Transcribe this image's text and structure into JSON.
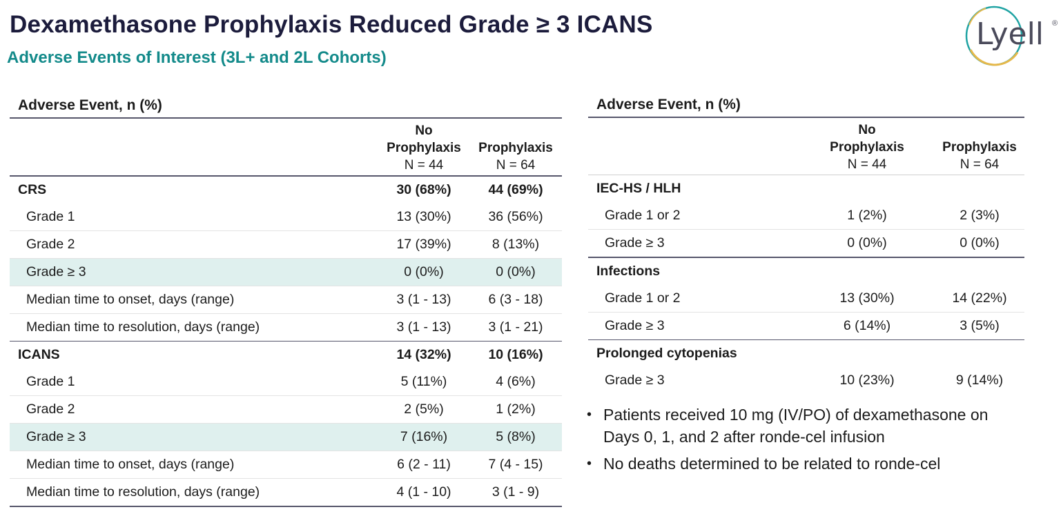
{
  "header": {
    "title": "Dexamethasone Prophylaxis Reduced Grade ≥ 3 ICANS",
    "subtitle": "Adverse Events of Interest (3L+ and 2L Cohorts)",
    "logo_text": "Lyell",
    "logo_mark": "®"
  },
  "left_table": {
    "title": "Adverse Event, n (%)",
    "col1": {
      "line1": "No",
      "line2": "Prophylaxis",
      "line3": "N = 44"
    },
    "col2": {
      "line2": "Prophylaxis",
      "line3": "N = 64"
    },
    "rows": [
      {
        "label": "CRS",
        "a": "30 (68%)",
        "b": "44 (69%)"
      },
      {
        "label": "Grade 1",
        "a": "13 (30%)",
        "b": "36 (56%)"
      },
      {
        "label": "Grade 2",
        "a": "17 (39%)",
        "b": "8 (13%)"
      },
      {
        "label": "Grade ≥ 3",
        "a": "0 (0%)",
        "b": "0 (0%)"
      },
      {
        "label": "Median time to onset, days (range)",
        "a": "3 (1 - 13)",
        "b": "6 (3 - 18)"
      },
      {
        "label": "Median time to resolution, days (range)",
        "a": "3 (1 - 13)",
        "b": "3 (1 - 21)"
      },
      {
        "label": "ICANS",
        "a": "14 (32%)",
        "b": "10 (16%)"
      },
      {
        "label": "Grade 1",
        "a": "5 (11%)",
        "b": "4 (6%)"
      },
      {
        "label": "Grade 2",
        "a": "2 (5%)",
        "b": "1 (2%)"
      },
      {
        "label": "Grade ≥ 3",
        "a": "7 (16%)",
        "b": "5 (8%)"
      },
      {
        "label": "Median time to onset, days (range)",
        "a": "6 (2 - 11)",
        "b": "7 (4 - 15)"
      },
      {
        "label": "Median time to resolution, days (range)",
        "a": "4 (1 - 10)",
        "b": "3 (1 - 9)"
      }
    ]
  },
  "right_table": {
    "title": "Adverse Event, n (%)",
    "col1": {
      "line1": "No",
      "line2": "Prophylaxis",
      "line3": "N = 44"
    },
    "col2": {
      "line2": "Prophylaxis",
      "line3": "N = 64"
    },
    "rows": [
      {
        "label": "IEC-HS / HLH"
      },
      {
        "label": "Grade 1 or 2",
        "a": "1 (2%)",
        "b": "2 (3%)"
      },
      {
        "label": "Grade ≥ 3",
        "a": "0 (0%)",
        "b": "0 (0%)"
      },
      {
        "label": "Infections"
      },
      {
        "label": "Grade 1 or 2",
        "a": "13 (30%)",
        "b": "14 (22%)"
      },
      {
        "label": "Grade ≥ 3",
        "a": "6 (14%)",
        "b": "3 (5%)"
      },
      {
        "label": "Prolonged cytopenias"
      },
      {
        "label": "Grade ≥ 3",
        "a": "10 (23%)",
        "b": "9 (14%)"
      }
    ]
  },
  "bullets": [
    "Patients received 10 mg (IV/PO) of dexamethasone on Days 0, 1, and 2 after ronde-cel infusion",
    "No deaths determined to be related to ronde-cel"
  ],
  "colors": {
    "title": "#1c1c3c",
    "subtitle": "#138a8a",
    "highlight_row": "#dff0ee",
    "logo_ring_teal": "#1fa3a3",
    "logo_ring_gold": "#e6b84a"
  }
}
